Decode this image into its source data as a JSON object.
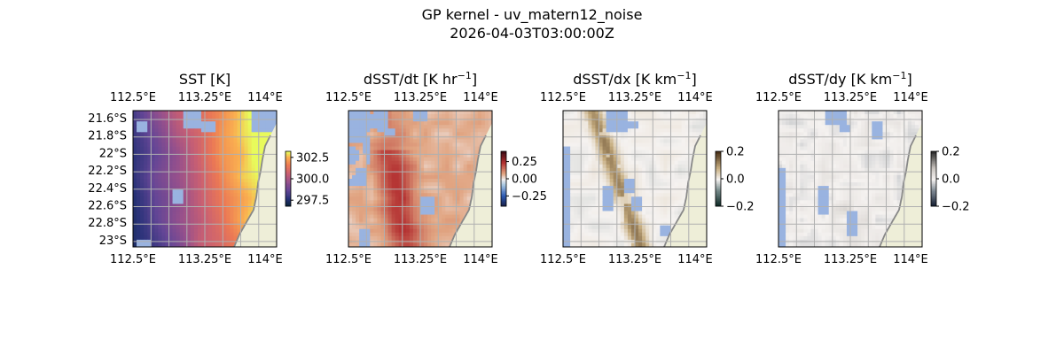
{
  "figure": {
    "suptitle_line1": "GP kernel - uv_matern12_noise",
    "suptitle_line2": "2026-04-03T03:00:00Z"
  },
  "colors": {
    "ocean_mask": "#99b3e0",
    "land": "#eeeed8",
    "coast": "#888888",
    "grid": "#b0b0b0"
  },
  "chart_data": [
    {
      "type": "heatmap",
      "title": "SST [K]",
      "title_sup": "",
      "title_suffix": "]",
      "field": "sst",
      "colormap": "thermal",
      "clim": [
        296.8,
        303.2
      ],
      "colorbar_ticks": [
        302.5,
        300.0,
        297.5
      ],
      "colorbar_tick_labels": [
        "302.5",
        "300.0",
        "297.5"
      ],
      "lon_ticks": [
        "112.5°E",
        "113.25°E",
        "114°E"
      ],
      "lat_ticks": [
        "21.6°S",
        "21.8°S",
        "22°S",
        "22.2°S",
        "22.4°S",
        "22.6°S",
        "22.8°S",
        "23°S"
      ],
      "show_lat_labels": true,
      "lon_range": [
        112.5,
        114.0
      ],
      "lat_range": [
        -23.0,
        -21.5
      ]
    },
    {
      "type": "heatmap",
      "title": "dSST/dt [K hr",
      "title_sup": "−1",
      "title_suffix": "]",
      "field": "ddt",
      "colormap": "balance",
      "clim": [
        -0.4,
        0.4
      ],
      "colorbar_ticks": [
        0.25,
        0.0,
        -0.25
      ],
      "colorbar_tick_labels": [
        "0.25",
        "0.00",
        "−0.25"
      ],
      "lon_ticks": [
        "112.5°E",
        "113.25°E",
        "114°E"
      ],
      "show_lat_labels": false,
      "lon_range": [
        112.5,
        114.0
      ],
      "lat_range": [
        -23.0,
        -21.5
      ]
    },
    {
      "type": "heatmap",
      "title": "dSST/dx [K km",
      "title_sup": "−1",
      "title_suffix": "]",
      "field": "ddx",
      "colormap": "diff_brown",
      "clim": [
        -0.2,
        0.2
      ],
      "colorbar_ticks": [
        0.2,
        0.0,
        -0.2
      ],
      "colorbar_tick_labels": [
        "0.2",
        "0.0",
        "−0.2"
      ],
      "lon_ticks": [
        "112.5°E",
        "113.25°E",
        "114°E"
      ],
      "show_lat_labels": false,
      "lon_range": [
        112.5,
        114.0
      ],
      "lat_range": [
        -23.0,
        -21.5
      ]
    },
    {
      "type": "heatmap",
      "title": "dSST/dy [K km",
      "title_sup": "−1",
      "title_suffix": "]",
      "field": "ddy",
      "colormap": "diff_gray",
      "clim": [
        -0.2,
        0.2
      ],
      "colorbar_ticks": [
        0.2,
        0.0,
        -0.2
      ],
      "colorbar_tick_labels": [
        "0.2",
        "0.0",
        "−0.2"
      ],
      "lon_ticks": [
        "112.5°E",
        "113.25°E",
        "114°E"
      ],
      "show_lat_labels": false,
      "lon_range": [
        112.5,
        114.0
      ],
      "lat_range": [
        -23.0,
        -21.5
      ]
    }
  ]
}
